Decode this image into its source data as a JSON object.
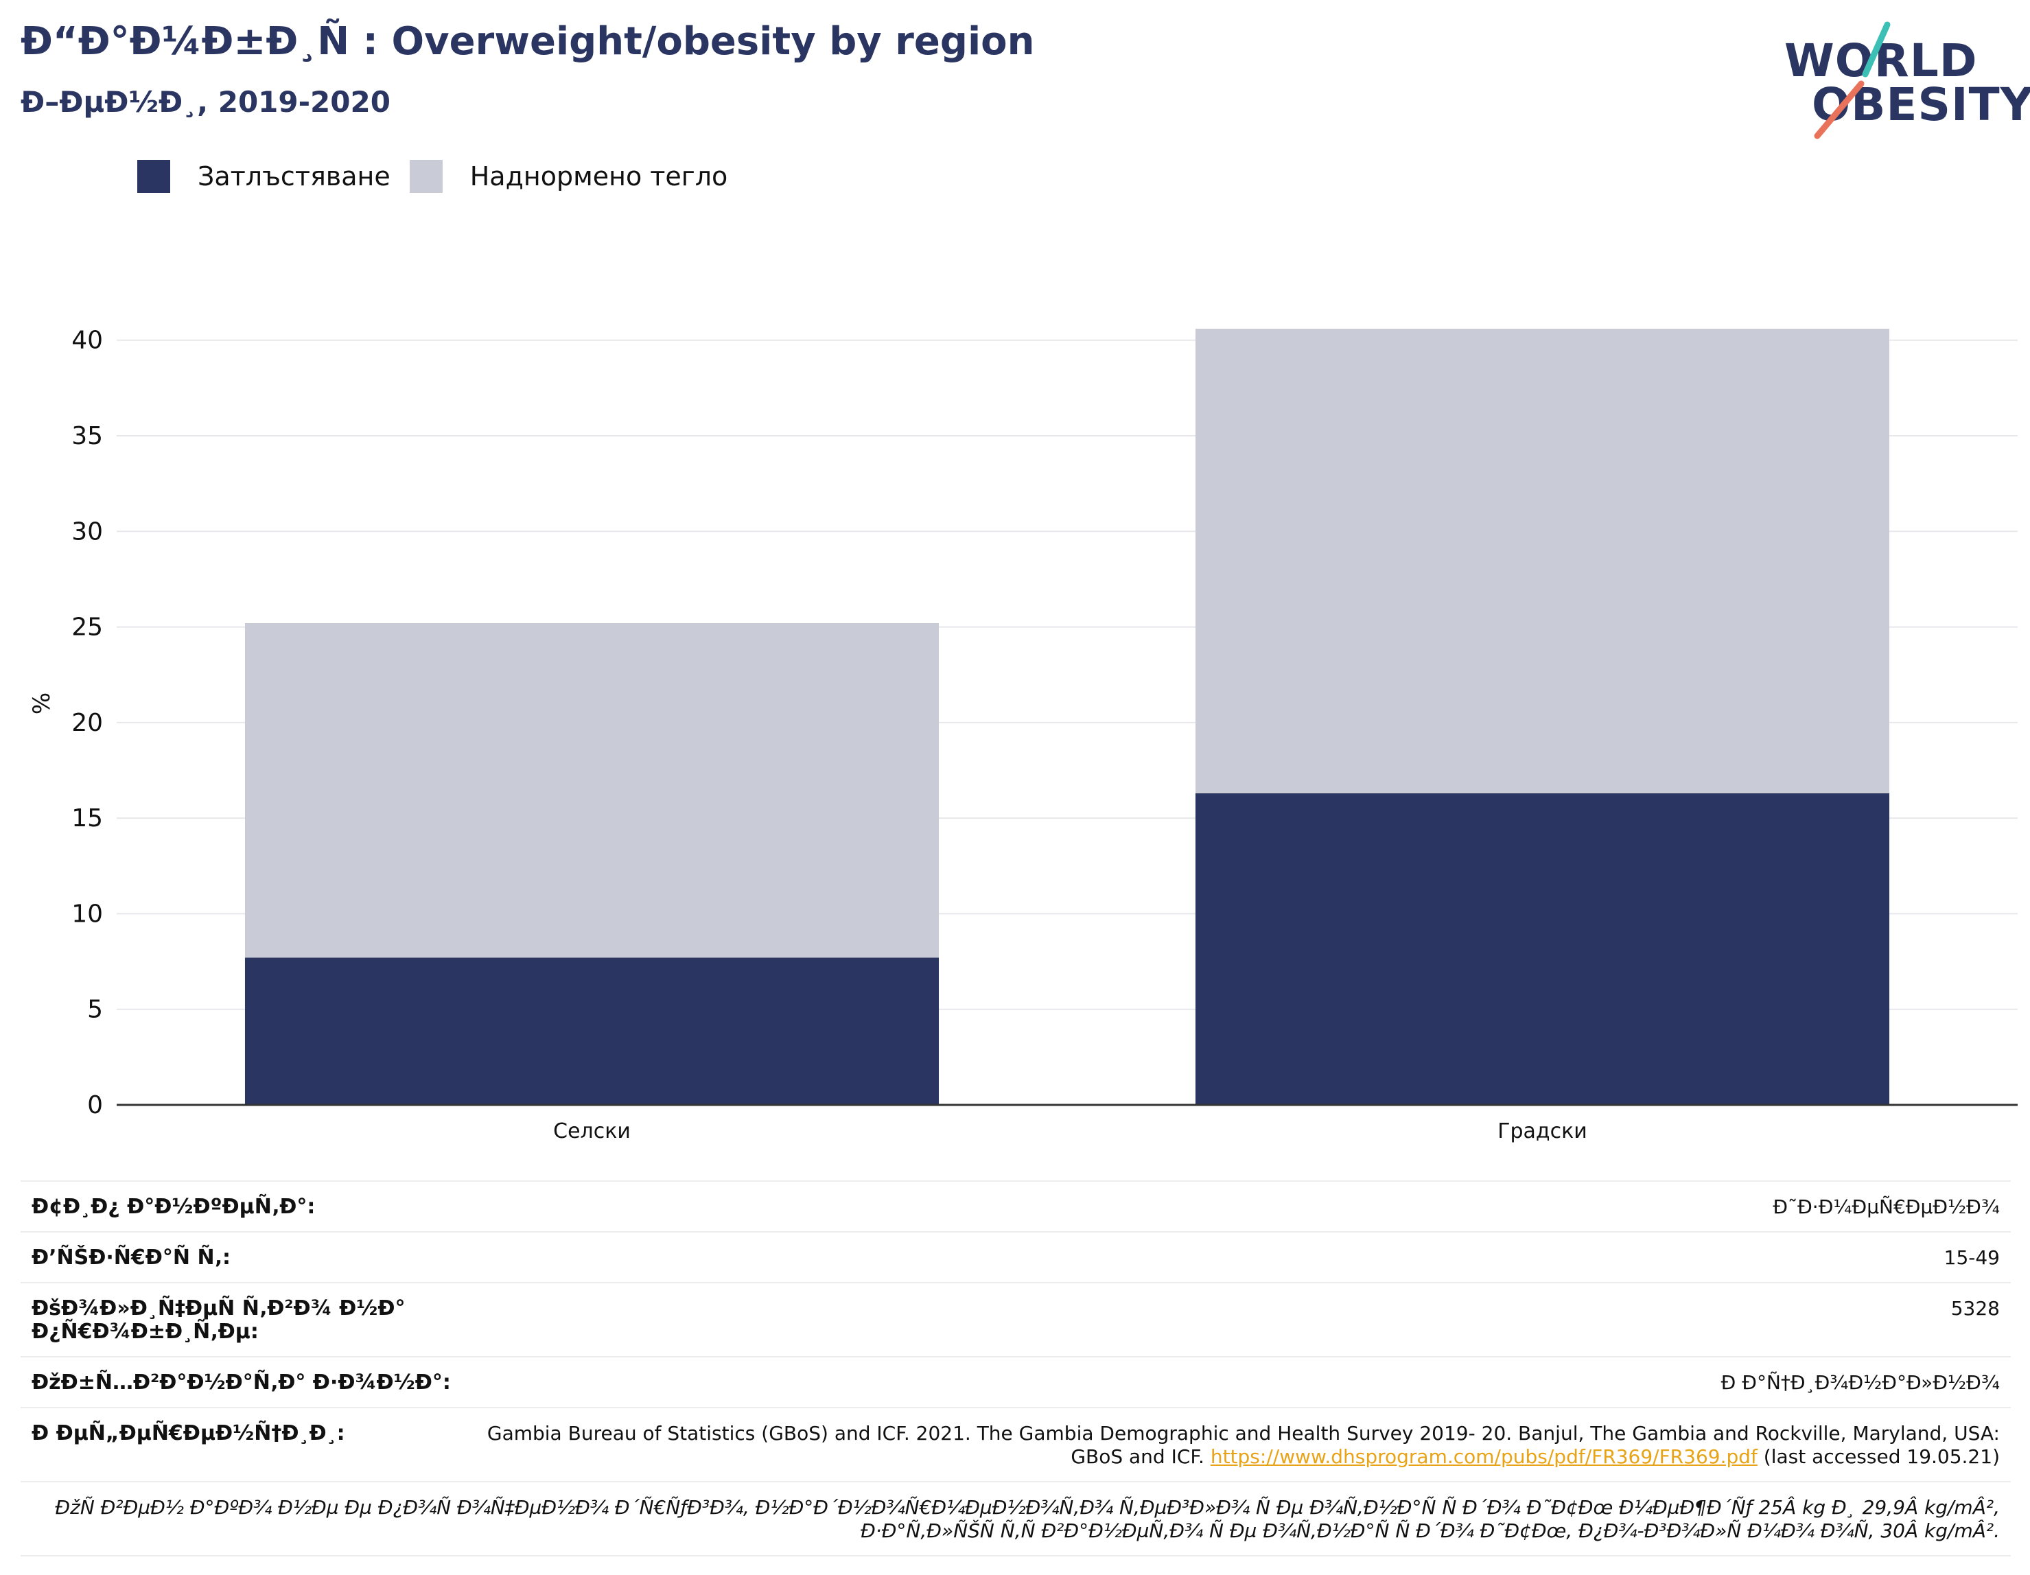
{
  "header": {
    "title": "Ð“Ð°Ð¼Ð±Ð¸Ñ : Overweight/obesity by region",
    "subtitle": "Ð–ÐµÐ½Ð¸, 2019-2020"
  },
  "logo": {
    "line1": "WORLD",
    "line2": "OBESITY",
    "colors": {
      "text": "#2a3562",
      "slash_top": "#3cbfb4",
      "slash_bottom": "#e8735a"
    }
  },
  "legend": [
    {
      "label": "Затлъстяване",
      "color": "#2a3562"
    },
    {
      "label": "Наднормено тегло",
      "color": "#c9cbd6"
    }
  ],
  "chart_data": {
    "type": "bar",
    "stacked": true,
    "categories": [
      "Селски",
      "Градски"
    ],
    "series": [
      {
        "name": "Затлъстяване",
        "color": "#2a3562",
        "values": [
          7.7,
          16.3
        ]
      },
      {
        "name": "Наднормено тегло",
        "color": "#c9cbd6",
        "values": [
          17.5,
          24.3
        ]
      }
    ],
    "ylabel": "%",
    "ylim": [
      0,
      42
    ],
    "yticks": [
      0,
      5,
      10,
      15,
      20,
      25,
      30,
      35,
      40
    ],
    "grid": true,
    "legend_position": "top-left"
  },
  "info": {
    "rows": [
      {
        "key": "Ð¢Ð¸Ð¿ Ð°Ð½ÐºÐµÑ‚Ð°:",
        "value": "Ð˜Ð·Ð¼ÐµÑ€ÐµÐ½Ð¾"
      },
      {
        "key": "Ð’ÑŠÐ·Ñ€Ð°Ñ Ñ‚:",
        "value": "15-49"
      },
      {
        "key": "ÐšÐ¾Ð»Ð¸Ñ‡ÐµÑ Ñ‚Ð²Ð¾ Ð½Ð° Ð¿Ñ€Ð¾Ð±Ð¸Ñ‚Ðµ:",
        "value": "5328"
      },
      {
        "key": "ÐžÐ±Ñ…Ð²Ð°Ð½Ð°Ñ‚Ð° Ð·Ð¾Ð½Ð°:",
        "value": "Ð Ð°Ñ†Ð¸Ð¾Ð½Ð°Ð»Ð½Ð¾"
      }
    ],
    "reference_key": "Ð ÐµÑ„ÐµÑ€ÐµÐ½Ñ†Ð¸Ð¸:",
    "reference_text": "Gambia Bureau of Statistics (GBoS) and ICF. 2021. The Gambia Demographic and Health Survey 2019- 20. Banjul, The Gambia and Rockville, Maryland, USA: GBoS and ICF.",
    "reference_link": "https://www.dhsprogram.com/pubs/pdf/FR369/FR369.pdf",
    "reference_suffix": "(last accessed 19.05.21)",
    "note": "ÐžÑ Ð²ÐµÐ½ Ð°ÐºÐ¾ Ð½Ðµ Ðµ Ð¿Ð¾Ñ Ð¾Ñ‡ÐµÐ½Ð¾ Ð´Ñ€ÑƒÐ³Ð¾, Ð½Ð°Ð´Ð½Ð¾Ñ€Ð¼ÐµÐ½Ð¾Ñ‚Ð¾ Ñ‚ÐµÐ³Ð»Ð¾ Ñ Ðµ Ð¾Ñ‚Ð½Ð°Ñ Ñ  Ð´Ð¾ Ð˜Ð¢Ðœ Ð¼ÐµÐ¶Ð´Ñƒ 25Â kg Ð¸ 29,9Â kg/mÂ², Ð·Ð°Ñ‚Ð»ÑŠÑ Ñ‚Ñ Ð²Ð°Ð½ÐµÑ‚Ð¾ Ñ Ðµ Ð¾Ñ‚Ð½Ð°Ñ Ñ  Ð´Ð¾ Ð˜Ð¢Ðœ, Ð¿Ð¾-Ð³Ð¾Ð»Ñ Ð¼Ð¾ Ð¾Ñ‚ 30Â kg/mÂ²."
  }
}
